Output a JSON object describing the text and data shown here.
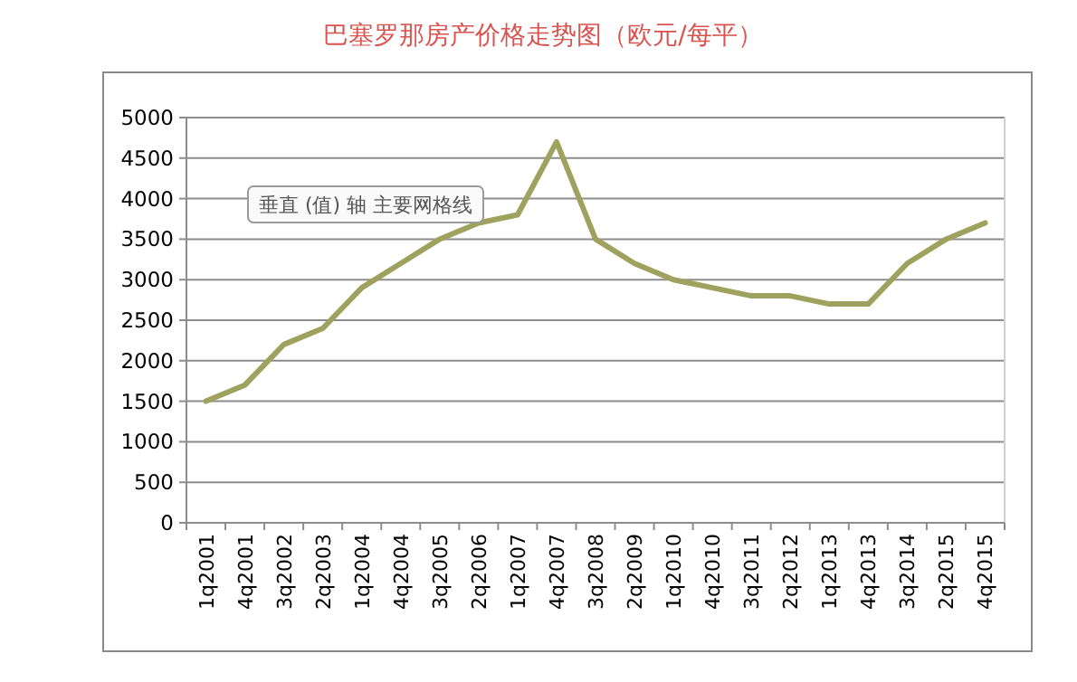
{
  "chart_data": {
    "type": "line",
    "title": "巴塞罗那房产价格走势图（欧元/每平）",
    "categories": [
      "1q2001",
      "4q2001",
      "3q2002",
      "2q2003",
      "1q2004",
      "4q2004",
      "3q2005",
      "2q2006",
      "1q2007",
      "4q2007",
      "3q2008",
      "2q2009",
      "1q2010",
      "4q2010",
      "3q2011",
      "2q2012",
      "1q2013",
      "4q2013",
      "3q2014",
      "2q2015",
      "4q2015"
    ],
    "series": [
      {
        "color": "#9fa25e",
        "values": [
          1500,
          1700,
          2200,
          2400,
          2900,
          3200,
          3500,
          3700,
          3800,
          4700,
          3500,
          3200,
          3000,
          2900,
          2800,
          2800,
          2700,
          2700,
          3200,
          3500,
          3700
        ]
      }
    ],
    "ylim": [
      0,
      5000
    ],
    "yticks": [
      0,
      500,
      1000,
      1500,
      2000,
      2500,
      3000,
      3500,
      4000,
      4500,
      5000
    ],
    "grid": "y",
    "marker": "none",
    "line_style": "solid",
    "annotations": [
      "垂直 (值) 轴 主要网格线"
    ]
  }
}
